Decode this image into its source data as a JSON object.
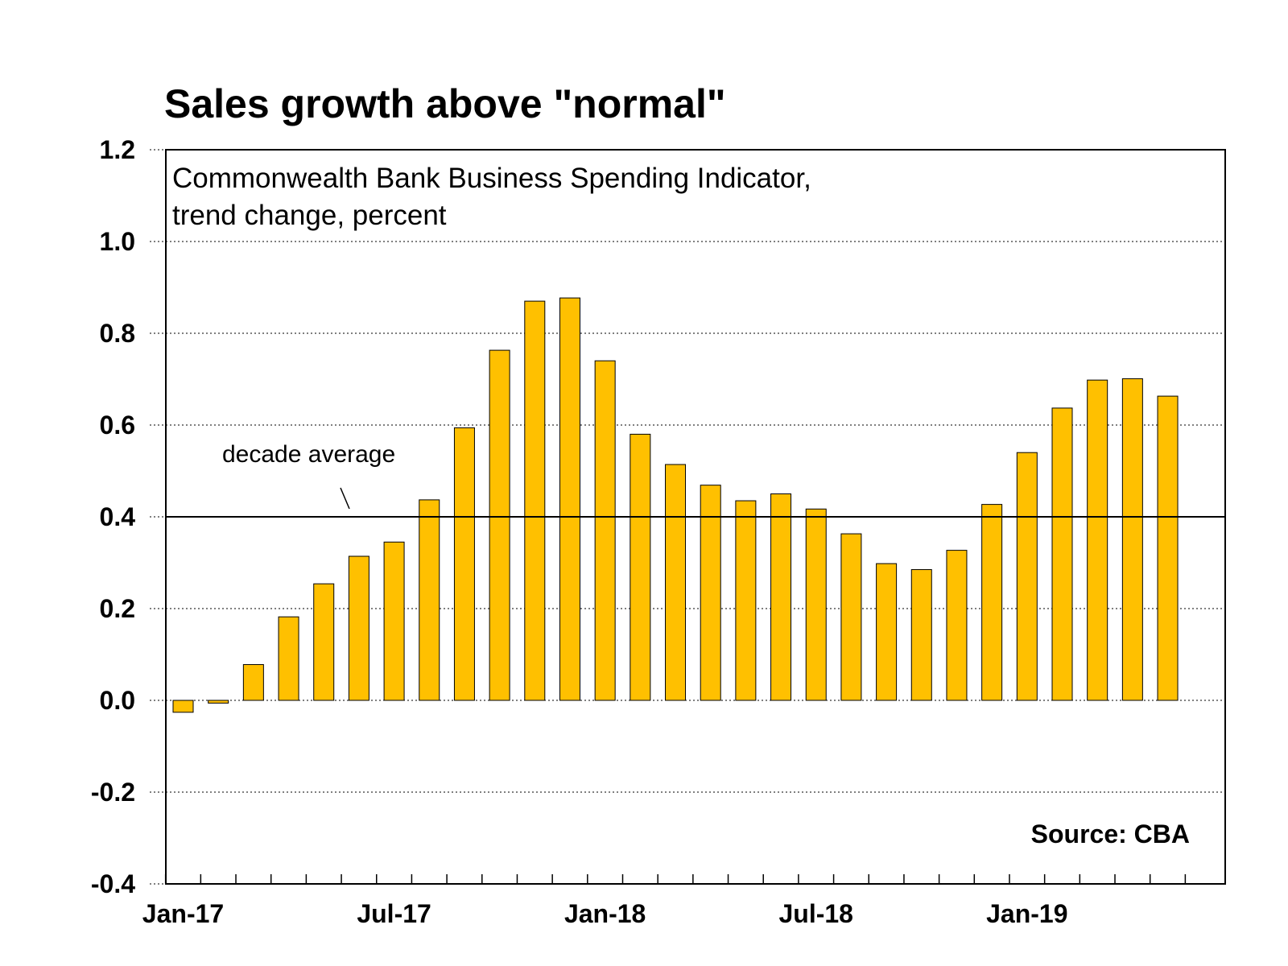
{
  "chart_data": {
    "type": "bar",
    "title": "Sales growth above \"normal\"",
    "subtitle": [
      "Commonwealth Bank Business Spending Indicator,",
      "trend change, percent"
    ],
    "source": "Source: CBA",
    "annotation": {
      "text": "decade average",
      "value": 0.4
    },
    "xlabel": "",
    "ylabel": "",
    "ylim": [
      -0.4,
      1.2
    ],
    "yticks": [
      1.2,
      1.0,
      0.8,
      0.6,
      0.4,
      0.2,
      0.0,
      -0.2,
      -0.4
    ],
    "ytick_labels": [
      "1.2",
      "1.0",
      "0.8",
      "0.6",
      "0.4",
      "0.2",
      "0.0",
      "-0.2",
      "-0.4"
    ],
    "categories": [
      "Jan-17",
      "Feb-17",
      "Mar-17",
      "Apr-17",
      "May-17",
      "Jun-17",
      "Jul-17",
      "Aug-17",
      "Sep-17",
      "Oct-17",
      "Nov-17",
      "Dec-17",
      "Jan-18",
      "Feb-18",
      "Mar-18",
      "Apr-18",
      "May-18",
      "Jun-18",
      "Jul-18",
      "Aug-18",
      "Sep-18",
      "Oct-18",
      "Nov-18",
      "Dec-18",
      "Jan-19",
      "Feb-19",
      "Mar-19",
      "Apr-19",
      "May-19"
    ],
    "xtick_labels": [
      {
        "index": 0,
        "label": "Jan-17"
      },
      {
        "index": 6,
        "label": "Jul-17"
      },
      {
        "index": 12,
        "label": "Jan-18"
      },
      {
        "index": 18,
        "label": "Jul-18"
      },
      {
        "index": 24,
        "label": "Jan-19"
      }
    ],
    "series": [
      {
        "values": [
          -0.026,
          -0.006,
          0.078,
          0.182,
          0.254,
          0.314,
          0.345,
          0.437,
          0.594,
          0.763,
          0.87,
          0.877,
          0.74,
          0.58,
          0.514,
          0.469,
          0.435,
          0.45,
          0.417,
          0.363,
          0.298,
          0.285,
          0.327,
          0.427,
          0.54,
          0.637,
          0.698,
          0.701,
          0.663
        ],
        "color": "#FFC000"
      }
    ],
    "colors": {
      "bar_fill": "#FFC000",
      "bar_stroke": "#000000",
      "grid": "#000000",
      "reference_line": "#000000"
    },
    "grid": true,
    "grid_style": "dotted horizontal",
    "legend": "none"
  }
}
